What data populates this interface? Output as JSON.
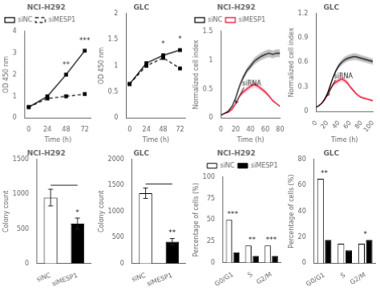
{
  "chart_data": [
    {
      "type": "line",
      "title": "NCI-H292",
      "xlabel": "Time (h)",
      "ylabel": "OD 450 nm",
      "x": [
        0,
        24,
        48,
        72
      ],
      "series": [
        {
          "name": "siNC",
          "color": "#000000",
          "marker": "square",
          "line_style": "solid",
          "values": [
            0.5,
            1.0,
            2.0,
            3.1
          ]
        },
        {
          "name": "siMESP1",
          "color": "#000000",
          "marker": "square",
          "line_style": "dashed",
          "values": [
            0.5,
            0.9,
            1.0,
            1.1
          ]
        }
      ],
      "xlim": [
        -5,
        80
      ],
      "xticks": [
        0,
        24,
        48,
        72
      ],
      "ylim": [
        0.0,
        4.0
      ],
      "yticks": [
        0.0,
        1.0,
        2.0,
        3.0,
        4.0
      ],
      "annotations": [
        {
          "text": "**",
          "x": 48
        },
        {
          "text": "***",
          "x": 72
        }
      ],
      "legend": "upper left",
      "grid": false
    },
    {
      "type": "line",
      "title": "GLC",
      "xlabel": "Time (h)",
      "ylabel": "OD 450 nm",
      "x": [
        0,
        24,
        48,
        72
      ],
      "series": [
        {
          "name": "siNC",
          "color": "#000000",
          "marker": "square",
          "line_style": "solid",
          "values": [
            0.65,
            1.05,
            1.2,
            1.3
          ]
        },
        {
          "name": "siMESP1",
          "color": "#000000",
          "marker": "square",
          "line_style": "dashed",
          "values": [
            0.65,
            1.0,
            1.15,
            0.95
          ]
        }
      ],
      "xlim": [
        -5,
        80
      ],
      "xticks": [
        0,
        24,
        48,
        72
      ],
      "ylim": [
        0.0,
        2.0
      ],
      "yticks": [
        0.0,
        0.5,
        1.0,
        1.5,
        2.0
      ],
      "annotations": [
        {
          "text": "*",
          "x": 48
        },
        {
          "text": "*",
          "x": 72
        }
      ],
      "grid": false
    },
    {
      "type": "line",
      "title": "NCI-H292",
      "xlabel": "Time (h)",
      "ylabel": "Normalized cell index",
      "x": [
        0,
        5,
        10,
        15,
        20,
        25,
        30,
        35,
        40,
        45,
        50,
        55,
        60,
        65,
        70,
        75,
        80
      ],
      "series": [
        {
          "name": "siNC",
          "color": "#000000",
          "marker": "none",
          "line_style": "solid",
          "values": [
            0.05,
            0.08,
            0.12,
            0.2,
            0.35,
            0.55,
            0.7,
            0.82,
            0.9,
            0.98,
            1.03,
            1.07,
            1.1,
            1.12,
            1.1,
            1.12,
            1.12
          ],
          "error": [
            0.003,
            0.0048,
            0.0072,
            0.012,
            0.021,
            0.033,
            0.042,
            0.0492,
            0.054,
            0.0588,
            0.0618,
            0.0642,
            0.066,
            0.0672,
            0.066,
            0.0672,
            0.0672
          ]
        },
        {
          "name": "siMESP1",
          "color": "#e8002a",
          "marker": "none",
          "line_style": "solid",
          "values": [
            0.05,
            0.08,
            0.1,
            0.15,
            0.25,
            0.38,
            0.45,
            0.5,
            0.55,
            0.58,
            0.55,
            0.5,
            0.45,
            0.38,
            0.3,
            0.25,
            0.2
          ],
          "error": [
            0.004,
            0.0064,
            0.008,
            0.012,
            0.02,
            0.0304,
            0.036,
            0.04,
            0.044,
            0.0464,
            0.044,
            0.04,
            0.036,
            0.0304,
            0.024,
            0.02,
            0.016
          ]
        }
      ],
      "xlim": [
        0,
        80
      ],
      "xticks": [
        0,
        20,
        40,
        60,
        80
      ],
      "ylim": [
        0.0,
        1.5
      ],
      "yticks": [
        0.0,
        0.5,
        1.0,
        1.5
      ],
      "annotations": [
        {
          "text": "siRNA",
          "x": 20,
          "y": 0.25
        }
      ],
      "legend": "upper left",
      "grid": false
    },
    {
      "type": "line",
      "title": "GLC",
      "xlabel": "Time (h)",
      "ylabel": "Normalized cell index",
      "x": [
        0,
        5,
        10,
        15,
        20,
        25,
        30,
        35,
        40,
        45,
        50,
        55,
        60,
        65,
        70,
        75,
        80,
        85,
        90,
        95,
        100
      ],
      "series": [
        {
          "name": "siNC",
          "color": "#000000",
          "marker": "none",
          "line_style": "solid",
          "values": [
            0.05,
            0.07,
            0.1,
            0.15,
            0.22,
            0.32,
            0.42,
            0.5,
            0.56,
            0.6,
            0.63,
            0.65,
            0.66,
            0.67,
            0.67,
            0.66,
            0.65,
            0.64,
            0.63,
            0.62,
            0.61
          ],
          "error": [
            0.003,
            0.0042,
            0.006,
            0.009,
            0.0132,
            0.0192,
            0.0252,
            0.03,
            0.0336,
            0.036,
            0.0378,
            0.039,
            0.0396,
            0.0402,
            0.0402,
            0.0396,
            0.039,
            0.0384,
            0.0378,
            0.0372,
            0.0366
          ]
        },
        {
          "name": "siMESP1",
          "color": "#e8002a",
          "marker": "none",
          "line_style": "solid",
          "values": [
            0.05,
            0.07,
            0.1,
            0.14,
            0.2,
            0.28,
            0.33,
            0.36,
            0.38,
            0.4,
            0.38,
            0.35,
            0.3,
            0.26,
            0.22,
            0.19,
            0.17,
            0.16,
            0.15,
            0.14,
            0.13
          ],
          "error": [
            0.004,
            0.0056,
            0.008,
            0.0112,
            0.016,
            0.0224,
            0.0264,
            0.0288,
            0.0304,
            0.032,
            0.0304,
            0.028,
            0.024,
            0.0208,
            0.0176,
            0.0152,
            0.0136,
            0.0128,
            0.012,
            0.0112,
            0.0104
          ]
        }
      ],
      "xlim": [
        0,
        100
      ],
      "xticks": [
        0,
        20,
        40,
        60,
        80,
        100
      ],
      "ylim": [
        0.0,
        1.2
      ],
      "yticks": [
        0.0,
        0.3,
        0.6,
        0.9,
        1.2
      ],
      "annotations": [
        {
          "text": "siRNA",
          "x": 20,
          "y": 0.19
        }
      ],
      "grid": false
    },
    {
      "type": "bar",
      "title": "NCI-H292",
      "ylabel": "Colony count",
      "categories": [
        "siNC",
        "siMESP1"
      ],
      "values": [
        950,
        575
      ],
      "error": [
        120,
        80
      ],
      "colors": [
        "#ffffff",
        "#000000"
      ],
      "ylim": [
        0,
        1500
      ],
      "yticks": [
        0,
        500,
        1000,
        1500
      ],
      "annotations": [
        {
          "text": "*",
          "category": "siMESP1"
        }
      ],
      "grid": false
    },
    {
      "type": "bar",
      "title": "GLC",
      "ylabel": "Colony count",
      "categories": [
        "siNC",
        "siMESP1"
      ],
      "values": [
        1350,
        420
      ],
      "error": [
        100,
        60
      ],
      "colors": [
        "#ffffff",
        "#000000"
      ],
      "ylim": [
        0,
        2000
      ],
      "yticks": [
        0,
        500,
        1000,
        1500,
        2000
      ],
      "annotations": [
        {
          "text": "**",
          "category": "siMESP1"
        }
      ],
      "grid": false
    },
    {
      "type": "bar",
      "title": "NCI-H292",
      "ylabel": "Percentage of cells (%)",
      "categories": [
        "G0/G1",
        "S",
        "G2/M"
      ],
      "series": [
        {
          "name": "siNC",
          "color": "#ffffff",
          "values": [
            50,
            20,
            20
          ]
        },
        {
          "name": "siMESP1",
          "color": "#000000",
          "values": [
            12,
            8,
            8
          ]
        }
      ],
      "ylim": [
        0,
        100
      ],
      "yticks": [
        0,
        25,
        50,
        75,
        100
      ],
      "annotations": [
        {
          "text": "***",
          "category": "G0/G1"
        },
        {
          "text": "**",
          "category": "S"
        },
        {
          "text": "***",
          "category": "G2/M"
        }
      ],
      "legend": "upper right",
      "grid": false
    },
    {
      "type": "bar",
      "title": "GLC",
      "ylabel": "Percentage of cells (%)",
      "categories": [
        "G0/G1",
        "S",
        "G2/M"
      ],
      "series": [
        {
          "name": "siNC",
          "color": "#ffffff",
          "values": [
            65,
            15,
            15
          ]
        },
        {
          "name": "siMESP1",
          "color": "#000000",
          "values": [
            18,
            10,
            18
          ]
        }
      ],
      "ylim": [
        0,
        80
      ],
      "yticks": [
        0,
        20,
        40,
        60,
        80
      ],
      "annotations": [
        {
          "text": "**",
          "category": "G0/G1"
        },
        {
          "text": "*",
          "category": "G2/M"
        }
      ],
      "grid": false
    }
  ]
}
